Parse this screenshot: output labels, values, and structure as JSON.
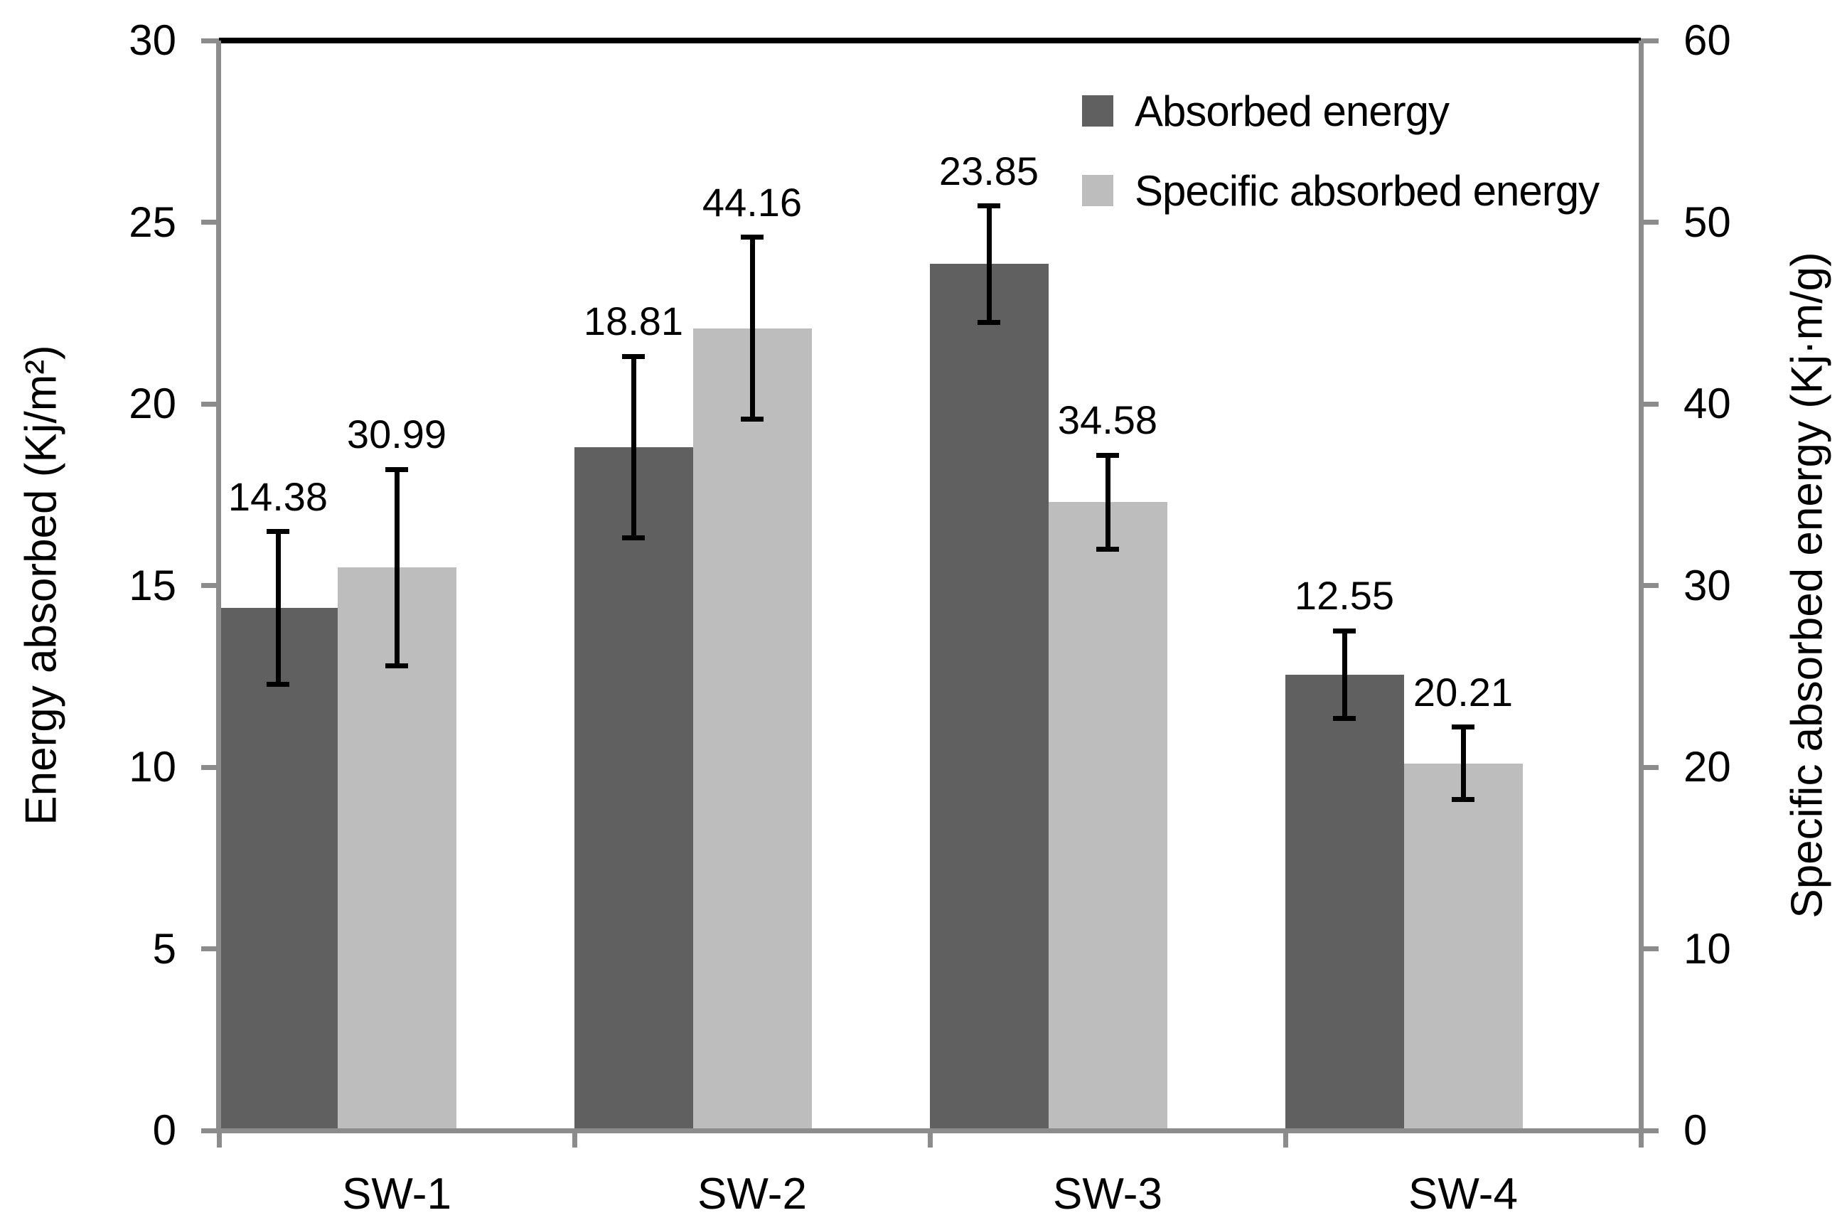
{
  "chart_data": {
    "type": "bar",
    "categories": [
      "SW-1",
      "SW-2",
      "SW-3",
      "SW-4"
    ],
    "series": [
      {
        "name": "Absorbed energy",
        "axis": "left",
        "color": "#606060",
        "values": [
          14.38,
          18.81,
          23.85,
          12.55
        ],
        "labels": [
          "14.38",
          "18.81",
          "23.85",
          "12.55"
        ],
        "errors": [
          2.1,
          2.5,
          1.6,
          1.2
        ]
      },
      {
        "name": "Specific absorbed energy",
        "axis": "right",
        "color": "#bdbdbd",
        "values": [
          30.99,
          44.16,
          34.58,
          20.21
        ],
        "labels": [
          "30.99",
          "44.16",
          "34.58",
          "20.21"
        ],
        "errors": [
          5.4,
          5.0,
          2.6,
          2.0
        ]
      }
    ],
    "left_axis": {
      "label": "Energy absorbed (Kj/m²)",
      "min": 0,
      "max": 30,
      "ticks": [
        30,
        25,
        20,
        15,
        10,
        5,
        0
      ]
    },
    "right_axis": {
      "label": "Specific absorbed energy (Kj·m/g)",
      "min": 0,
      "max": 60,
      "ticks": [
        60,
        50,
        40,
        30,
        20,
        10,
        0
      ]
    },
    "legend": {
      "position": "top-right",
      "entries": [
        "Absorbed energy",
        "Specific absorbed energy"
      ]
    },
    "grid": false,
    "error_bars": true,
    "colors": {
      "error_bar": "#000000",
      "axis_line": "#8c8c8c",
      "plot_top_border": "#000000",
      "text": "#000000",
      "background": "#ffffff"
    }
  }
}
